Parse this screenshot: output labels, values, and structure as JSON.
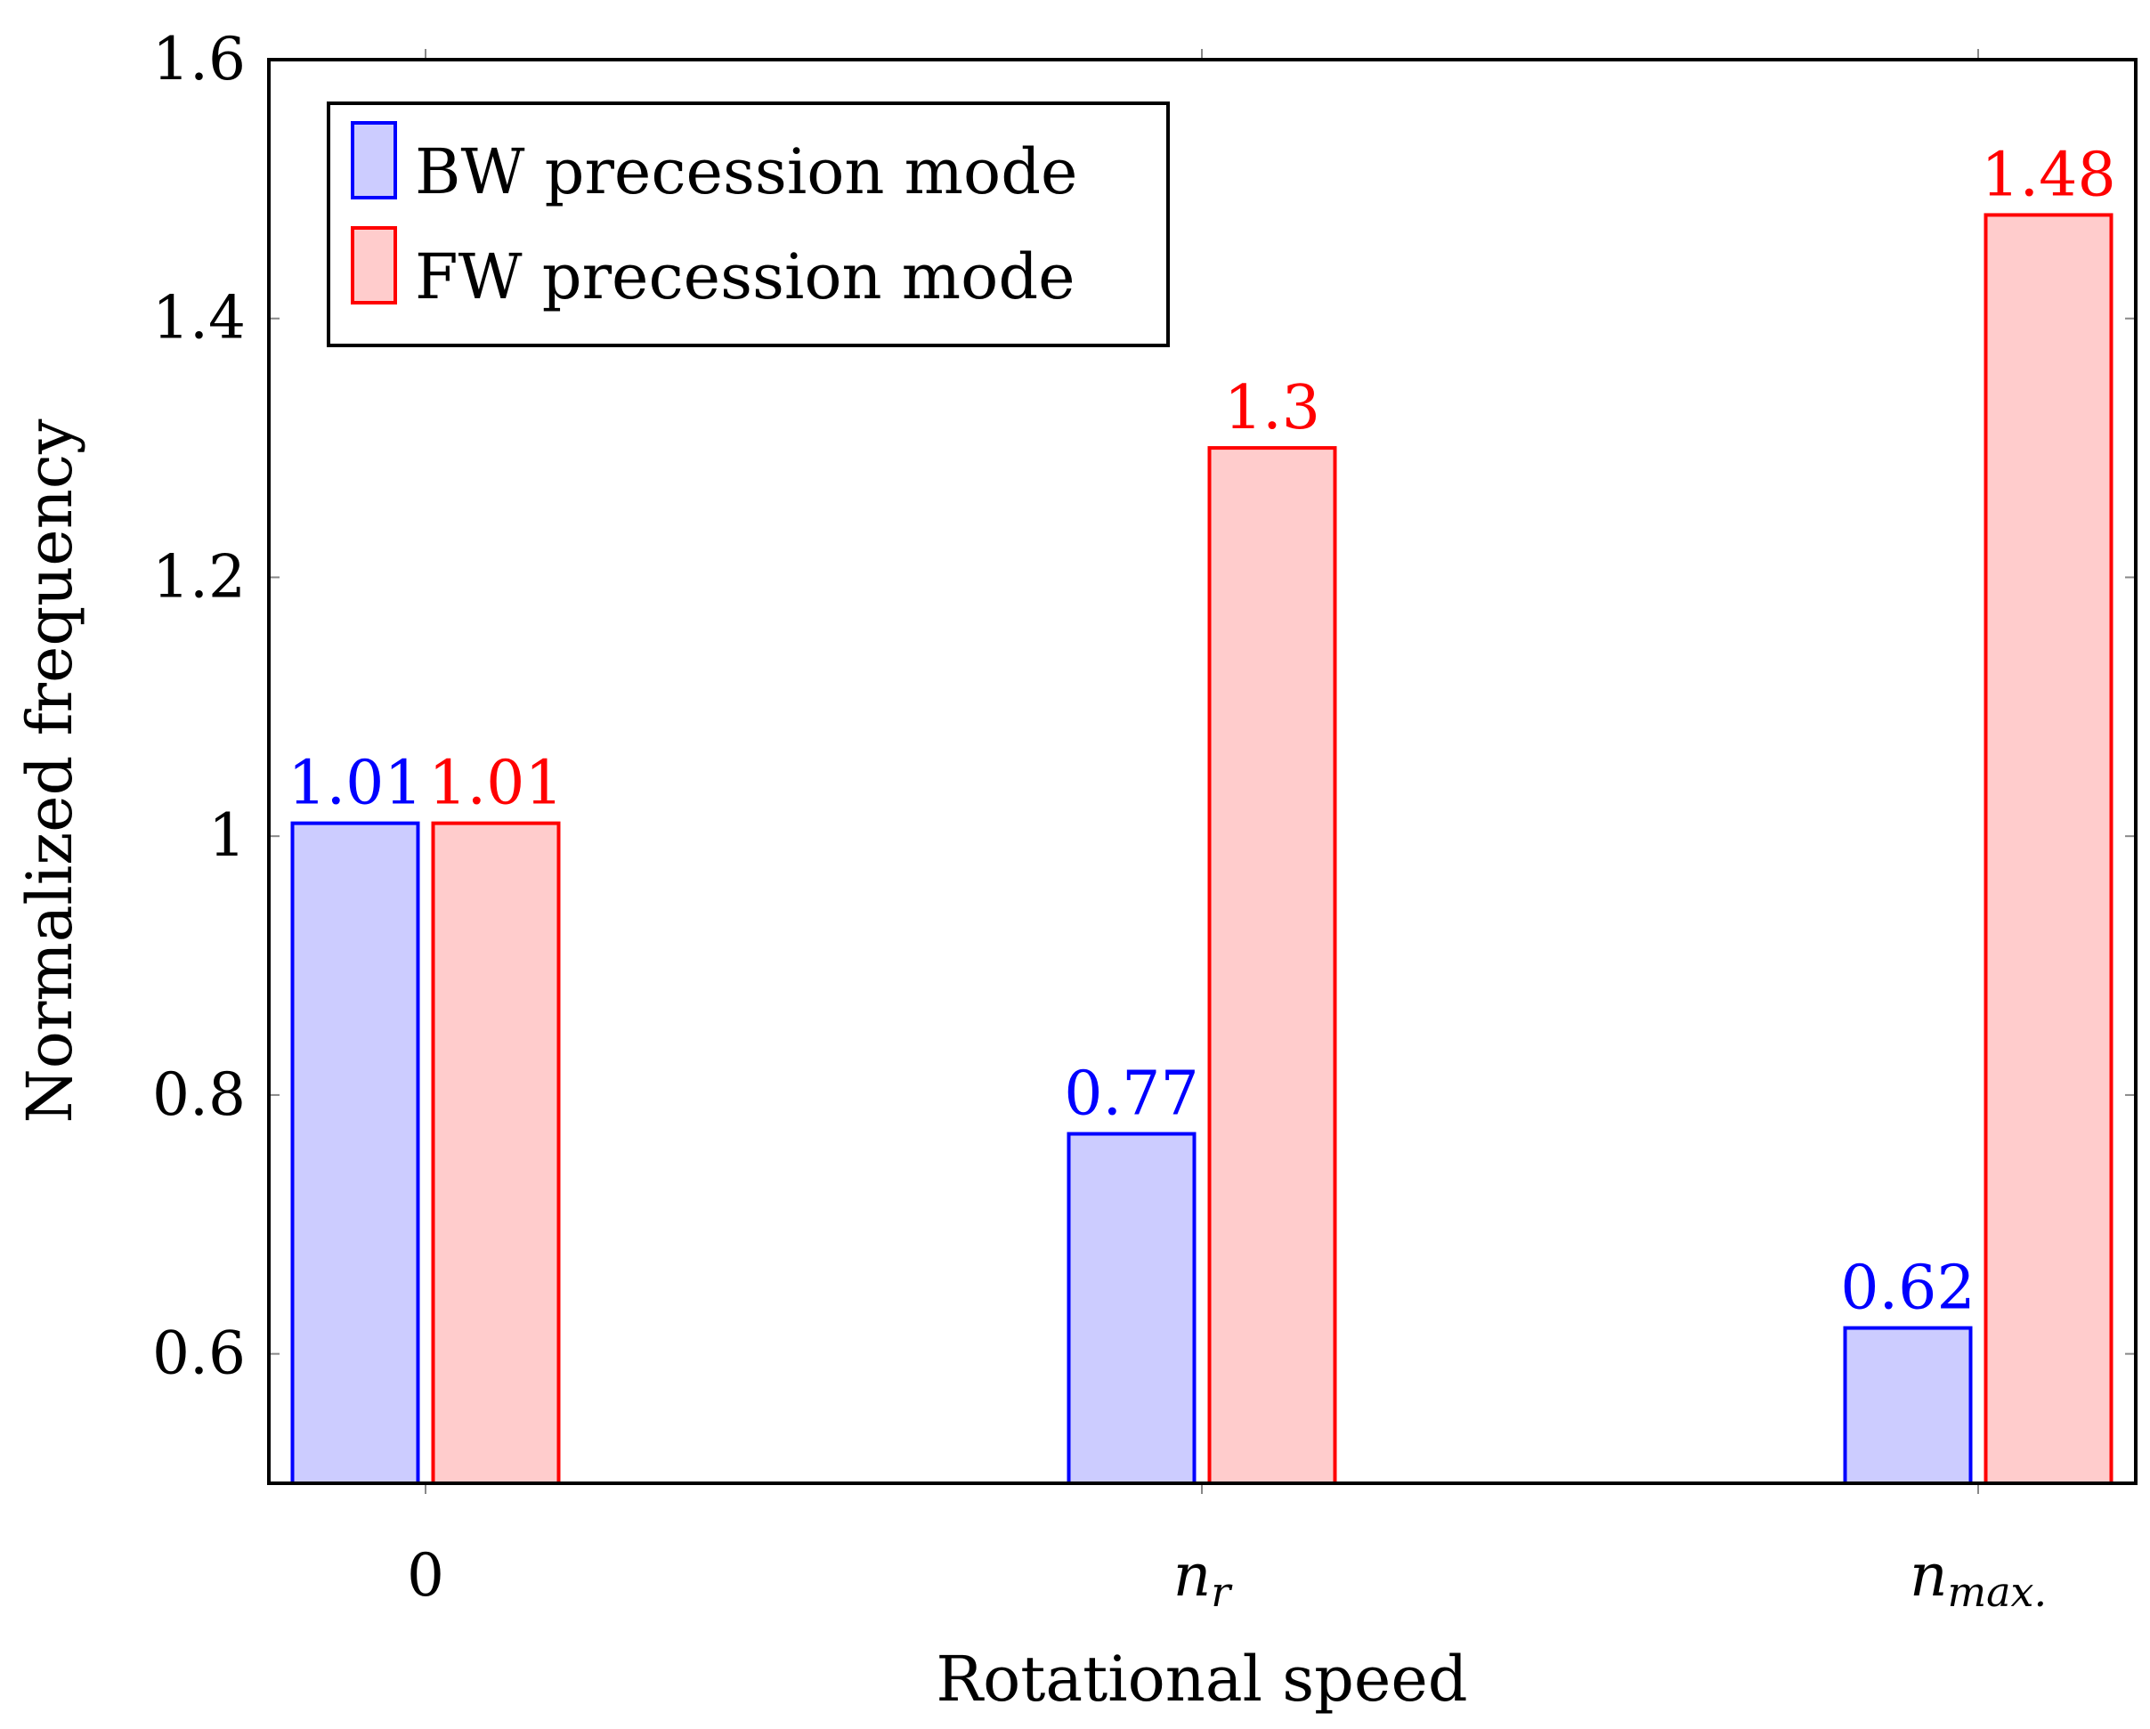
{
  "chart_data": {
    "type": "bar",
    "title": "",
    "xlabel": "Rotational speed",
    "ylabel": "Normalized frequency",
    "ylim": [
      0.5,
      1.6
    ],
    "yticks": [
      "0.6",
      "0.8",
      "1",
      "1.2",
      "1.4",
      "1.6"
    ],
    "ytick_values": [
      0.6,
      0.8,
      1.0,
      1.2,
      1.4,
      1.6
    ],
    "categories": [
      {
        "main": "0",
        "sub": ""
      },
      {
        "main": "n",
        "sub": "r"
      },
      {
        "main": "n",
        "sub": "max."
      }
    ],
    "series": [
      {
        "name": "BW precession mode",
        "values": [
          1.01,
          0.77,
          0.62
        ],
        "labels": [
          "1.01",
          "0.77",
          "0.62"
        ],
        "stroke": "#0000ff",
        "fill": "#ccccff"
      },
      {
        "name": "FW precession mode",
        "values": [
          1.01,
          1.3,
          1.48
        ],
        "labels": [
          "1.01",
          "1.3",
          "1.48"
        ],
        "stroke": "#ff0000",
        "fill": "#ffcccc"
      }
    ],
    "legend_position": "top-left",
    "grid": false
  }
}
